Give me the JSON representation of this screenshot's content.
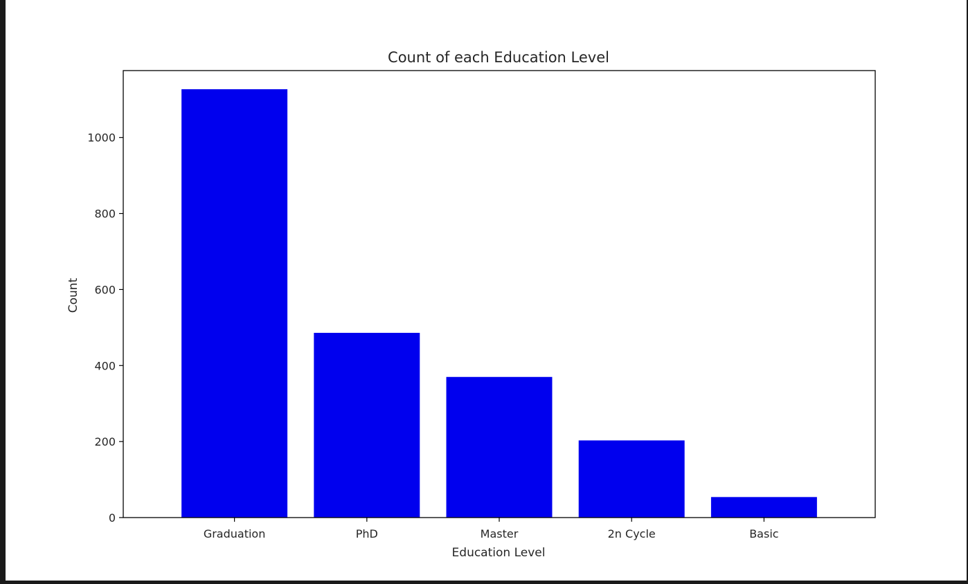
{
  "chart_data": {
    "type": "bar",
    "title": "Count of each Education Level",
    "xlabel": "Education Level",
    "ylabel": "Count",
    "categories": [
      "Graduation",
      "PhD",
      "Master",
      "2n Cycle",
      "Basic"
    ],
    "values": [
      1127,
      486,
      370,
      203,
      54
    ],
    "ylim": [
      0,
      1176
    ],
    "yticks": [
      0,
      200,
      400,
      600,
      800,
      1000
    ],
    "bar_color": "#0000ee",
    "grid": false,
    "legend": "none"
  }
}
